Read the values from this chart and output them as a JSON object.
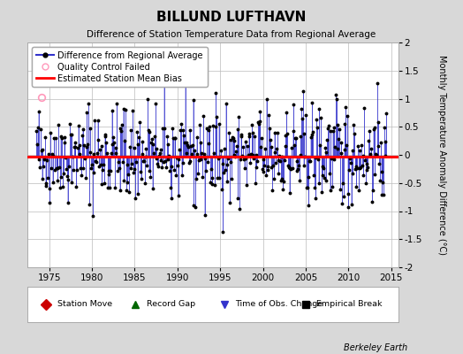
{
  "title": "BILLUND LUFTHAVN",
  "subtitle": "Difference of Station Temperature Data from Regional Average",
  "ylabel": "Monthly Temperature Anomaly Difference (°C)",
  "xlabel_years": [
    1975,
    1980,
    1985,
    1990,
    1995,
    2000,
    2005,
    2010,
    2015
  ],
  "ylim": [
    -2,
    2
  ],
  "yticks": [
    -2,
    -1.5,
    -1,
    -0.5,
    0,
    0.5,
    1,
    1.5,
    2
  ],
  "xlim_start": 1972.5,
  "xlim_end": 2015.8,
  "bias_level": -0.03,
  "bias_color": "#ff0000",
  "line_color": "#3333cc",
  "fill_color": "#6666dd",
  "dot_color": "#000000",
  "qc_fail_x": 1974.08,
  "qc_fail_y": 1.02,
  "background_color": "#d8d8d8",
  "plot_bg_color": "#ffffff",
  "grid_color": "#bbbbbb",
  "footer_text": "Berkeley Earth",
  "legend1_labels": [
    "Difference from Regional Average",
    "Quality Control Failed",
    "Estimated Station Mean Bias"
  ],
  "legend2_items": [
    {
      "label": "Station Move",
      "color": "#cc0000",
      "marker": "D"
    },
    {
      "label": "Record Gap",
      "color": "#006600",
      "marker": "^"
    },
    {
      "label": "Time of Obs. Change",
      "color": "#3333cc",
      "marker": "v"
    },
    {
      "label": "Empirical Break",
      "color": "#000000",
      "marker": "s"
    }
  ],
  "seed": 42,
  "n_months": 492,
  "start_year": 1973.5
}
